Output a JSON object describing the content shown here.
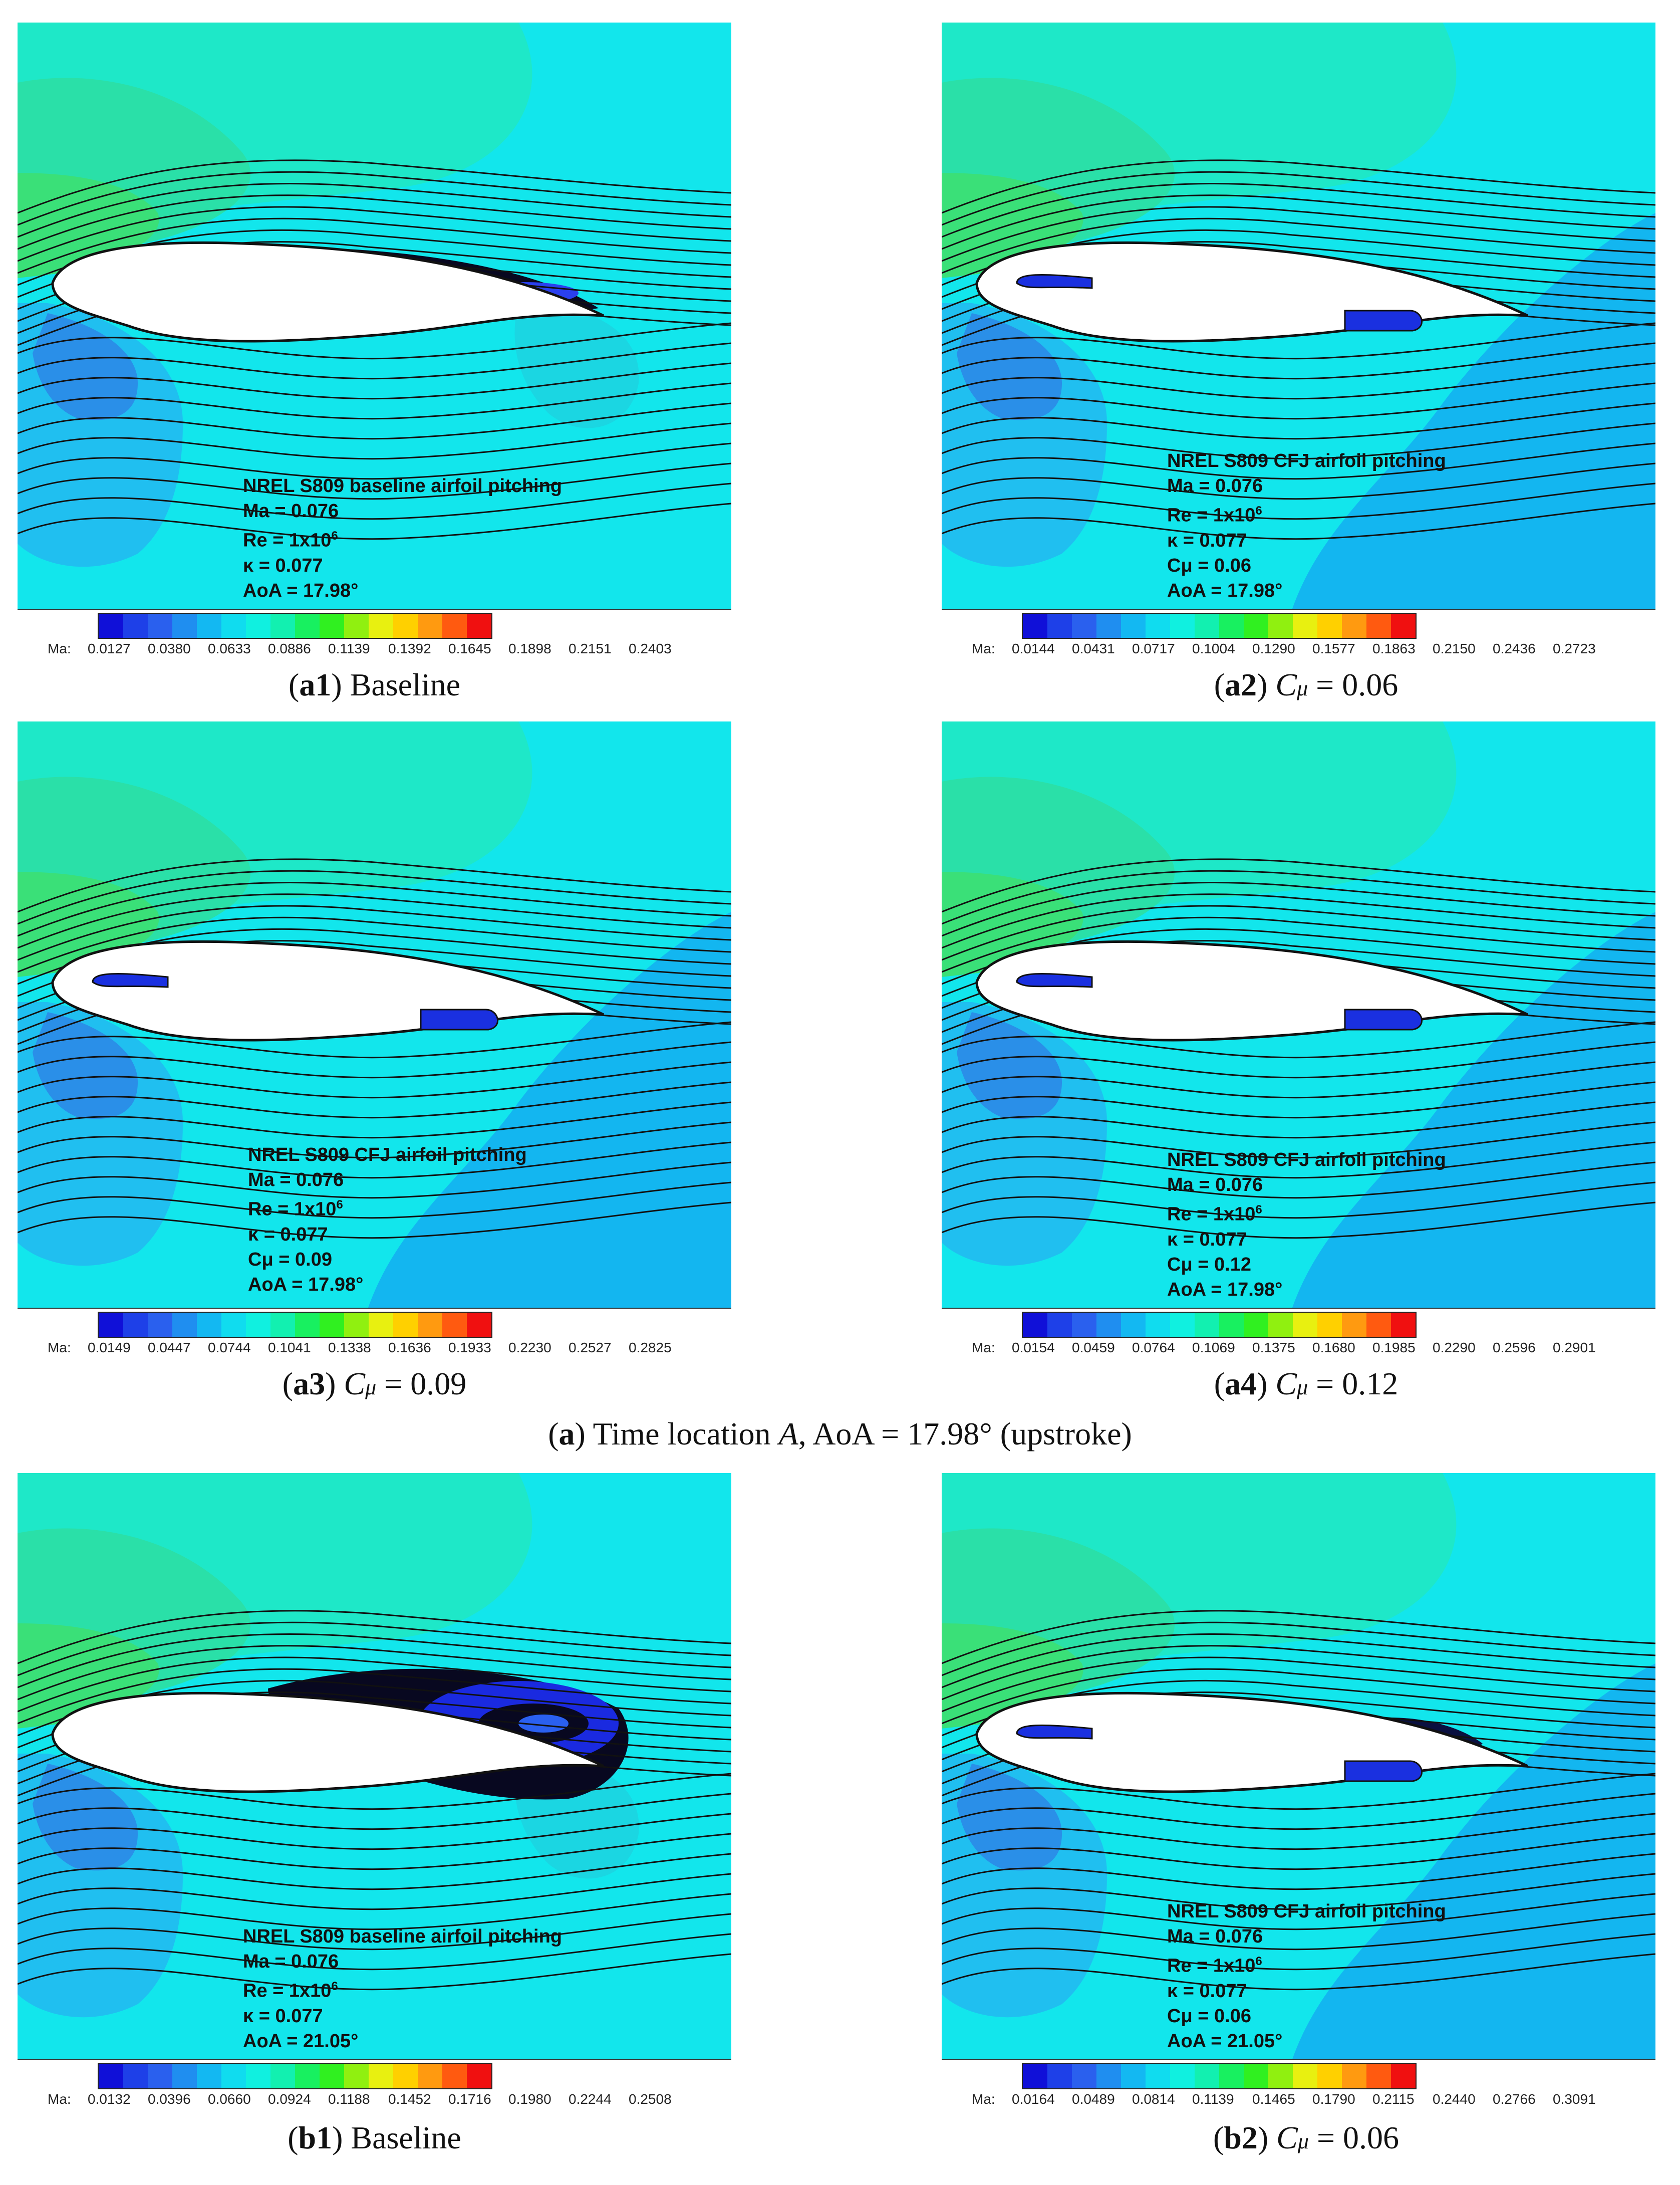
{
  "colors": {
    "scale": [
      "#1010d8",
      "#1e40e8",
      "#2a60ee",
      "#1f8ef0",
      "#13b8f2",
      "#10dcef",
      "#10f0e0",
      "#12f0b0",
      "#18f060",
      "#30f020",
      "#90f010",
      "#e8f010",
      "#ffd000",
      "#ff9a10",
      "#ff5a10",
      "#f01010"
    ],
    "streamline": "#111111"
  },
  "panels": [
    {
      "id": "a1",
      "annotation": {
        "title": "NREL S809 baseline airfoil pitching",
        "ma": "Ma = 0.076",
        "re": "Re = 1x10",
        "re_exp": "6",
        "kappa": "κ = 0.077",
        "cmu": "",
        "aoa": "AoA = 17.98°"
      },
      "colorbar": {
        "label": "Ma:",
        "ticks": [
          "0.0127",
          "0.0380",
          "0.0633",
          "0.0886",
          "0.1139",
          "0.1392",
          "0.1645",
          "0.1898",
          "0.2151",
          "0.2403"
        ]
      },
      "caption": {
        "tag": "a1",
        "text": "Baseline",
        "cmu_symbol": "",
        "value": ""
      },
      "cfj": false,
      "vortex": "small"
    },
    {
      "id": "a2",
      "annotation": {
        "title": "NREL S809 CFJ airfoil pitching",
        "ma": "Ma = 0.076",
        "re": "Re = 1x10",
        "re_exp": "6",
        "kappa": "κ = 0.077",
        "cmu": "Cμ = 0.06",
        "aoa": "AoA = 17.98°"
      },
      "colorbar": {
        "label": "Ma:",
        "ticks": [
          "0.0144",
          "0.0431",
          "0.0717",
          "0.1004",
          "0.1290",
          "0.1577",
          "0.1863",
          "0.2150",
          "0.2436",
          "0.2723"
        ]
      },
      "caption": {
        "tag": "a2",
        "text": "",
        "cmu_symbol": "C",
        "value": " = 0.06"
      },
      "cfj": true,
      "vortex": "none"
    },
    {
      "id": "a3",
      "annotation": {
        "title": "NREL S809 CFJ airfoil pitching",
        "ma": "Ma = 0.076",
        "re": "Re = 1x10",
        "re_exp": "6",
        "kappa": "κ = 0.077",
        "cmu": "Cμ = 0.09",
        "aoa": "AoA = 17.98°"
      },
      "colorbar": {
        "label": "Ma:",
        "ticks": [
          "0.0149",
          "0.0447",
          "0.0744",
          "0.1041",
          "0.1338",
          "0.1636",
          "0.1933",
          "0.2230",
          "0.2527",
          "0.2825"
        ]
      },
      "caption": {
        "tag": "a3",
        "text": "",
        "cmu_symbol": "C",
        "value": " = 0.09"
      },
      "cfj": true,
      "vortex": "none"
    },
    {
      "id": "a4",
      "annotation": {
        "title": "NREL S809 CFJ airfoil pitching",
        "ma": "Ma = 0.076",
        "re": "Re = 1x10",
        "re_exp": "6",
        "kappa": "κ = 0.077",
        "cmu": "Cμ = 0.12",
        "aoa": "AoA = 17.98°"
      },
      "colorbar": {
        "label": "Ma:",
        "ticks": [
          "0.0154",
          "0.0459",
          "0.0764",
          "0.1069",
          "0.1375",
          "0.1680",
          "0.1985",
          "0.2290",
          "0.2596",
          "0.2901"
        ]
      },
      "caption": {
        "tag": "a4",
        "text": "",
        "cmu_symbol": "C",
        "value": " = 0.12"
      },
      "cfj": true,
      "vortex": "none"
    },
    {
      "id": "b1",
      "annotation": {
        "title": "NREL S809 baseline airfoil pitching",
        "ma": "Ma = 0.076",
        "re": "Re = 1x10",
        "re_exp": "6",
        "kappa": "κ = 0.077",
        "cmu": "",
        "aoa": "AoA = 21.05°"
      },
      "colorbar": {
        "label": "Ma:",
        "ticks": [
          "0.0132",
          "0.0396",
          "0.0660",
          "0.0924",
          "0.1188",
          "0.1452",
          "0.1716",
          "0.1980",
          "0.2244",
          "0.2508"
        ]
      },
      "caption": {
        "tag": "b1",
        "text": "Baseline",
        "cmu_symbol": "",
        "value": ""
      },
      "cfj": false,
      "vortex": "large"
    },
    {
      "id": "b2",
      "annotation": {
        "title": "NREL S809 CFJ airfoil pitching",
        "ma": "Ma = 0.076",
        "re": "Re = 1x10",
        "re_exp": "6",
        "kappa": "κ = 0.077",
        "cmu": "Cμ = 0.06",
        "aoa": "AoA = 21.05°"
      },
      "colorbar": {
        "label": "Ma:",
        "ticks": [
          "0.0164",
          "0.0489",
          "0.0814",
          "0.1139",
          "0.1465",
          "0.1790",
          "0.2115",
          "0.2440",
          "0.2766",
          "0.3091"
        ]
      },
      "caption": {
        "tag": "b2",
        "text": "",
        "cmu_symbol": "C",
        "value": " = 0.06"
      },
      "cfj": true,
      "vortex": "medium"
    }
  ],
  "group_caption": {
    "tag": "a",
    "text_before": "Time location ",
    "italic": "A",
    "text_after": ", AoA = 17.98° (upstroke)"
  }
}
